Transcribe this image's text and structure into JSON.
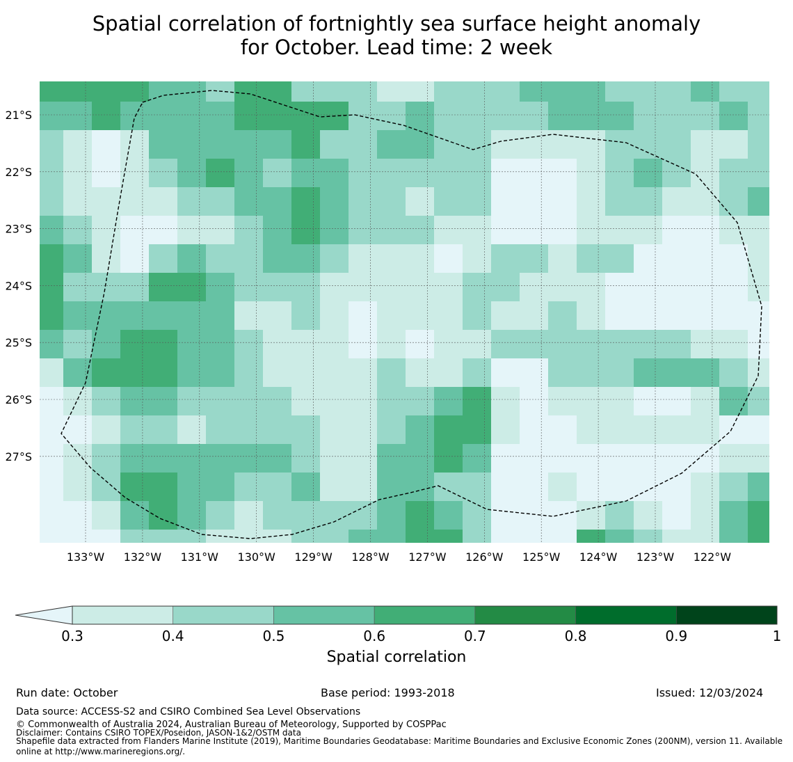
{
  "title_line1": "Spatial correlation of fortnightly sea surface height anomaly",
  "title_line2": "for October. Lead time: 2 week",
  "chart_data": {
    "type": "heatmap",
    "title": "Spatial correlation of fortnightly sea surface height anomaly for October. Lead time: 2 week",
    "lat_ticks": [
      "21°S",
      "22°S",
      "23°S",
      "24°S",
      "25°S",
      "26°S",
      "27°S"
    ],
    "lon_ticks": [
      "133°W",
      "132°W",
      "131°W",
      "130°W",
      "129°W",
      "128°W",
      "127°W",
      "126°W",
      "125°W",
      "124°W",
      "123°W",
      "122°W"
    ],
    "level_legend": "0:<0.3, 1:0.3-0.4, 2:0.4-0.5, 3:0.5-0.6, 4:0.6-0.7, 5:0.7-0.8, 6:0.8-0.9, 7:0.9-1",
    "grid_levels": [
      "44443324422211222333222322",
      "33433334444223222233322232",
      "21013333342233221111222112",
      "21012343233222220001232122",
      "21111223343221220001221123",
      "32100112343222110001110011",
      "43102322332111012212200001",
      "42224432221111122111000001",
      "43333331121011121121000000",
      "32344332111010112222222110",
      "13444332111121120022233321",
      "01233222211122341011100132",
      "00122122221123441001111100",
      "01233333321133430000000011",
      "01244332231133220010000123",
      "00134321222234320001210134",
      "00022211122334420004321134"
    ],
    "colors": [
      "#e5f5f9",
      "#ccece6",
      "#99d8c9",
      "#66c2a4",
      "#41ae76",
      "#238b45",
      "#006d2c",
      "#00441b"
    ],
    "colorbar": {
      "ticks": [
        "0.3",
        "0.4",
        "0.5",
        "0.6",
        "0.7",
        "0.8",
        "0.9",
        "1"
      ],
      "label": "Spatial correlation",
      "extend": "min"
    }
  },
  "footer": {
    "run_date": "Run date: October",
    "base_period": "Base period: 1993-2018",
    "issued": "Issued: 12/03/2024",
    "data_source": "Data source: ACCESS-S2 and CSIRO Combined Sea Level Observations",
    "copyright": "© Commonwealth of Australia 2024, Australian Bureau of Meteorology, Supported by COSPPac",
    "disclaimer": "Disclaimer: Contains CSIRO TOPEX/Poseidon, JASON-1&2/OSTM data",
    "shapefile_1": "Shapefile data extracted from Flanders Marine Institute (2019), Maritime Boundaries Geodatabase: Maritime Boundaries and Exclusive Economic Zones (200NM), version 11. Available",
    "shapefile_2": "online at http://www.marineregions.org/."
  }
}
